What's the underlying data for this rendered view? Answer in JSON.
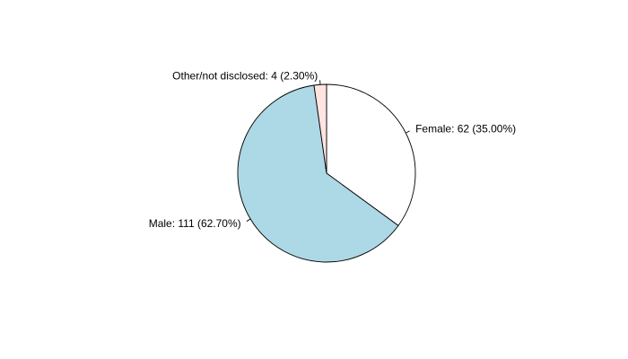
{
  "chart_data": {
    "type": "pie",
    "title": "",
    "start": "twelve o'clock",
    "direction": "clockwise",
    "slices": [
      {
        "category": "Female",
        "value": 62,
        "percent": 35.0,
        "label": "Female: 62 (35.00%)",
        "color": "#ffffff"
      },
      {
        "category": "Male",
        "value": 111,
        "percent": 62.7,
        "label": "Male: 111 (62.70%)",
        "color": "#add8e6"
      },
      {
        "category": "Other/not disclosed",
        "value": 4,
        "percent": 2.3,
        "label": "Other/not disclosed: 4 (2.30%)",
        "color": "#ffe4e1"
      }
    ],
    "border_color": "#000000"
  }
}
